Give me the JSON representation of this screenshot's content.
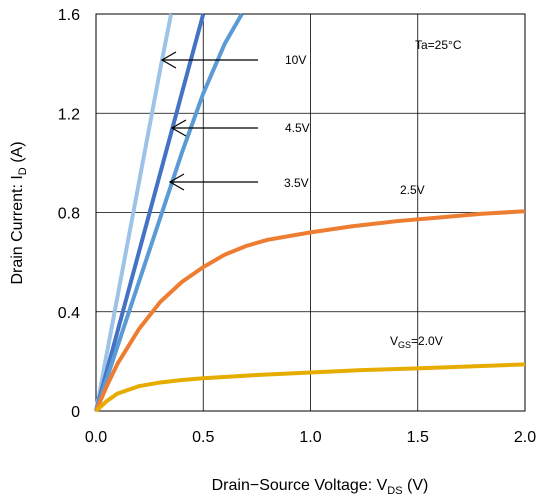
{
  "chart_data": {
    "type": "line",
    "xlabel": "Drain−Source Voltage: V",
    "xlabel_sub": "DS",
    "xlabel_unit": "(V)",
    "ylabel": "Drain Current: I",
    "ylabel_sub": "D",
    "ylabel_unit": "(A)",
    "xlim": [
      0,
      2.0
    ],
    "ylim": [
      0,
      1.6
    ],
    "x_ticks": [
      "0.0",
      "0.5",
      "1.0",
      "1.5",
      "2.0"
    ],
    "y_ticks": [
      "0",
      "0.4",
      "0.8",
      "1.2",
      "1.6"
    ],
    "grid": true,
    "series": [
      {
        "name": "10V",
        "color": "#9dc3e6",
        "x": [
          0,
          0.1,
          0.2,
          0.3,
          0.35
        ],
        "y": [
          0,
          0.46,
          0.92,
          1.38,
          1.6
        ]
      },
      {
        "name": "4.5V",
        "color": "#4472c4",
        "x": [
          0,
          0.1,
          0.2,
          0.3,
          0.4,
          0.5
        ],
        "y": [
          0,
          0.32,
          0.64,
          0.96,
          1.28,
          1.6
        ]
      },
      {
        "name": "3.5V",
        "color": "#5b9bd5",
        "x": [
          0,
          0.1,
          0.2,
          0.3,
          0.4,
          0.5,
          0.6,
          0.68
        ],
        "y": [
          0,
          0.26,
          0.52,
          0.78,
          1.04,
          1.28,
          1.48,
          1.6
        ]
      },
      {
        "name": "2.5V",
        "color": "#ed7d31",
        "x": [
          0,
          0.05,
          0.1,
          0.2,
          0.3,
          0.4,
          0.5,
          0.6,
          0.7,
          0.8,
          1.0,
          1.2,
          1.4,
          1.6,
          1.8,
          2.0
        ],
        "y": [
          0,
          0.1,
          0.19,
          0.33,
          0.44,
          0.52,
          0.58,
          0.63,
          0.665,
          0.69,
          0.72,
          0.745,
          0.765,
          0.78,
          0.795,
          0.805
        ]
      },
      {
        "name": "2.0V",
        "color": "#e6ac00",
        "x": [
          0,
          0.05,
          0.1,
          0.2,
          0.3,
          0.4,
          0.5,
          0.75,
          1.0,
          1.25,
          1.5,
          1.75,
          2.0
        ],
        "y": [
          0,
          0.04,
          0.07,
          0.1,
          0.115,
          0.125,
          0.132,
          0.145,
          0.155,
          0.165,
          0.172,
          0.18,
          0.188
        ]
      }
    ],
    "annotations": {
      "v10": "10V",
      "v45": "4.5V",
      "v35": "3.5V",
      "v25": "2.5V",
      "vgs_prefix": "V",
      "vgs_sub": "GS",
      "vgs_value": "=2.0V",
      "temp": "Ta=25°C"
    }
  }
}
